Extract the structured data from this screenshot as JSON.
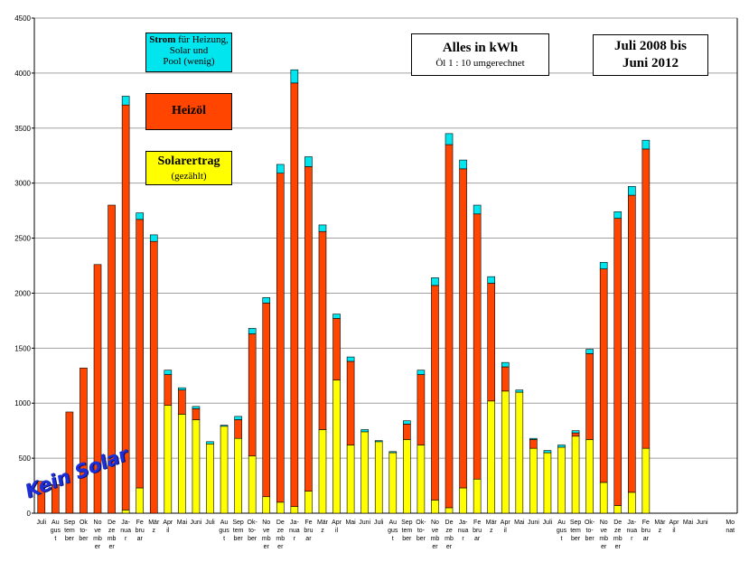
{
  "chart_data": {
    "type": "bar",
    "stacked": true,
    "ylim": [
      0,
      4500
    ],
    "yticks": [
      0,
      500,
      1000,
      1500,
      2000,
      2500,
      3000,
      3500,
      4000,
      4500
    ],
    "grid": true,
    "categories": [
      [
        "Juli"
      ],
      [
        "Au",
        "gus",
        "t"
      ],
      [
        "Sep",
        "tem",
        "ber"
      ],
      [
        "Ok",
        "to-",
        "ber"
      ],
      [
        "No",
        "ve",
        "mb",
        "er"
      ],
      [
        "De",
        "ze",
        "mb",
        "er"
      ],
      [
        "Ja-",
        "nua",
        "r"
      ],
      [
        "Fe",
        "bru",
        "ar"
      ],
      [
        "Mär",
        "z"
      ],
      [
        "Apr",
        "il"
      ],
      [
        "Mai"
      ],
      [
        "Juni"
      ],
      [
        "Juli"
      ],
      [
        "Au",
        "gus",
        "t"
      ],
      [
        "Sep",
        "tem",
        "ber"
      ],
      [
        "Ok-",
        "to-",
        "ber"
      ],
      [
        "No",
        "ve",
        "mb",
        "er"
      ],
      [
        "De",
        "ze",
        "mb",
        "er"
      ],
      [
        "Ja-",
        "nua",
        "r"
      ],
      [
        "Fe",
        "bru",
        "ar"
      ],
      [
        "Mär",
        "z"
      ],
      [
        "Apr",
        "il"
      ],
      [
        "Mai"
      ],
      [
        "Juni"
      ],
      [
        "Juli"
      ],
      [
        "Au",
        "gus",
        "t"
      ],
      [
        "Sep",
        "tem",
        "ber"
      ],
      [
        "Ok-",
        "to-",
        "ber"
      ],
      [
        "No",
        "ve",
        "mb",
        "er"
      ],
      [
        "De",
        "ze",
        "mb",
        "er"
      ],
      [
        "Ja-",
        "nua",
        "r"
      ],
      [
        "Fe",
        "bru",
        "ar"
      ],
      [
        "Mär",
        "z"
      ],
      [
        "Apr",
        "il"
      ],
      [
        "Mai"
      ],
      [
        "Juni"
      ],
      [
        "Juli"
      ],
      [
        "Au",
        "gus",
        "t"
      ],
      [
        "Sep",
        "tem",
        "ber"
      ],
      [
        "Ok-",
        "to-",
        "ber"
      ],
      [
        "No",
        "ve",
        "mb",
        "er"
      ],
      [
        "De",
        "ze",
        "mb",
        "er"
      ],
      [
        "Ja-",
        "nua",
        "r"
      ],
      [
        "Fe",
        "bru",
        "ar"
      ],
      [
        "Mär",
        "z"
      ],
      [
        "Apr",
        "il"
      ],
      [
        "Mai"
      ],
      [
        "Juni"
      ],
      [],
      [
        "Mo",
        "nat"
      ]
    ],
    "series": [
      {
        "name": "Solarertrag",
        "color": "#ffff00",
        "values": [
          0,
          0,
          0,
          0,
          0,
          0,
          30,
          230,
          0,
          980,
          900,
          850,
          630,
          790,
          680,
          520,
          150,
          100,
          60,
          200,
          760,
          1210,
          620,
          740,
          650,
          550,
          670,
          620,
          120,
          50,
          230,
          310,
          1020,
          1110,
          1100,
          590,
          550,
          600,
          700,
          670,
          280,
          70,
          190,
          590,
          0,
          0,
          0,
          0,
          0,
          0
        ]
      },
      {
        "name": "Heizöl",
        "color": "#ff4500",
        "values": [
          290,
          260,
          920,
          1320,
          2260,
          2800,
          3680,
          2440,
          2470,
          280,
          220,
          100,
          0,
          0,
          170,
          1110,
          1760,
          2990,
          3850,
          2950,
          1800,
          560,
          760,
          0,
          0,
          0,
          140,
          640,
          1950,
          3300,
          2900,
          2410,
          1070,
          220,
          0,
          80,
          0,
          0,
          30,
          780,
          1940,
          2610,
          2700,
          2720,
          0,
          0,
          0,
          0,
          0,
          0
        ]
      },
      {
        "name": "Strom",
        "color": "#00e5ee",
        "values": [
          0,
          0,
          0,
          0,
          0,
          0,
          80,
          60,
          60,
          40,
          20,
          20,
          20,
          10,
          30,
          50,
          50,
          80,
          120,
          90,
          60,
          40,
          40,
          20,
          10,
          10,
          30,
          40,
          70,
          100,
          80,
          80,
          60,
          40,
          20,
          10,
          20,
          20,
          20,
          40,
          60,
          60,
          80,
          80,
          0,
          0,
          0,
          0,
          0,
          0
        ]
      }
    ]
  },
  "labels": {
    "strom_bold": "Strom",
    "strom_rest": " für Heizung,",
    "strom_line2": "Solar und",
    "strom_line3": "Pool (wenig)",
    "heizoel": "Heizöl",
    "solar": "Solarertrag",
    "solar_sub": "(gezählt)",
    "alles": "Alles in kWh",
    "alles_sub": "Öl 1 : 10 umgerechnet",
    "juli1": "Juli 2008 bis",
    "juli2": "Juni 2012",
    "kein": "Kein Solar"
  }
}
